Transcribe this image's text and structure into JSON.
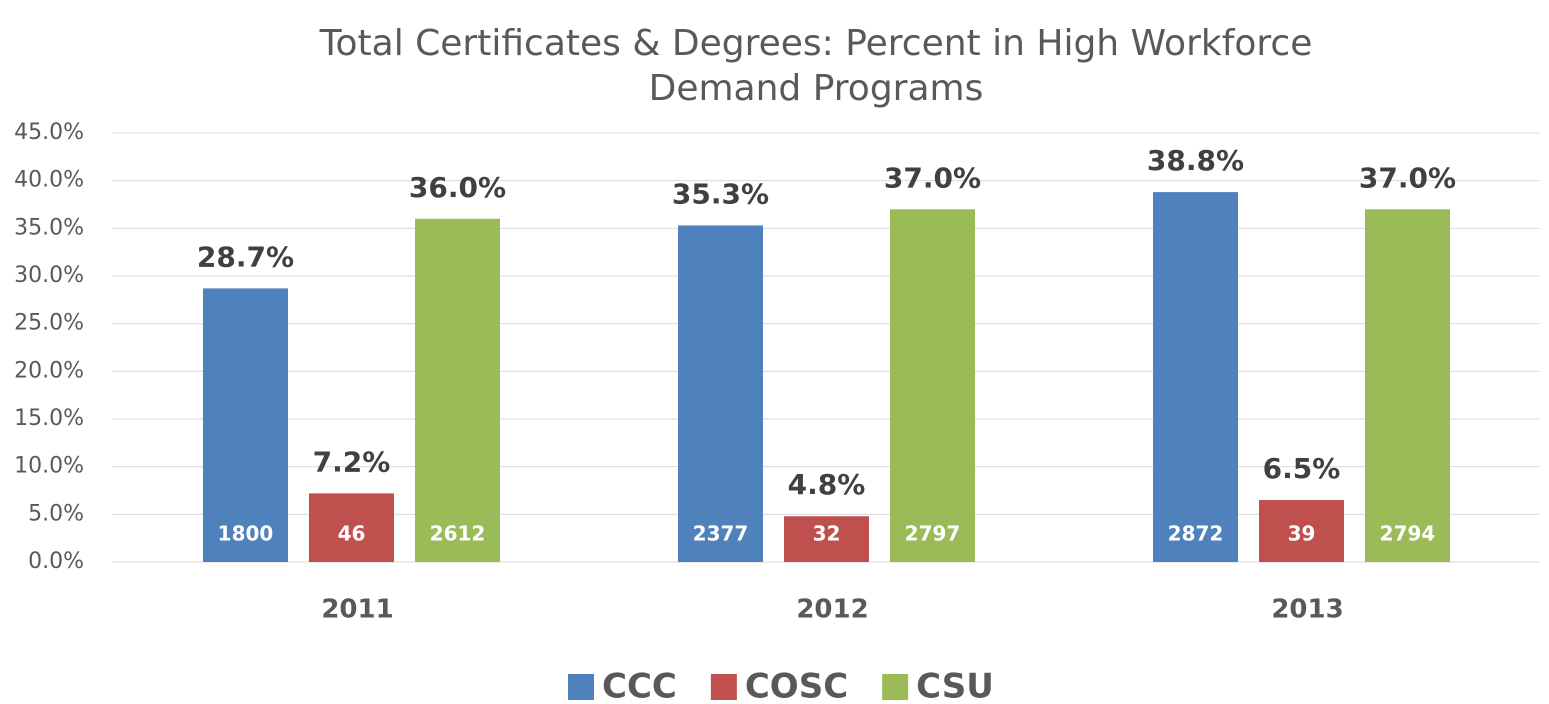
{
  "chart_data": {
    "type": "bar",
    "title": [
      "Total Certificates & Degrees: Percent in High Workforce",
      "Demand Programs"
    ],
    "categories": [
      "2011",
      "2012",
      "2013"
    ],
    "series": [
      {
        "name": "CCC",
        "color": "#4f81bd",
        "values": [
          28.7,
          35.3,
          38.8
        ],
        "value_labels": [
          "28.7%",
          "35.3%",
          "38.8%"
        ],
        "counts": [
          1800,
          2377,
          2872
        ]
      },
      {
        "name": "COSC",
        "color": "#c0504d",
        "values": [
          7.2,
          4.8,
          6.5
        ],
        "value_labels": [
          "7.2%",
          "4.8%",
          "6.5%"
        ],
        "counts": [
          46,
          32,
          39
        ]
      },
      {
        "name": "CSU",
        "color": "#9bbb59",
        "values": [
          36.0,
          37.0,
          37.0
        ],
        "value_labels": [
          "36.0%",
          "37.0%",
          "37.0%"
        ],
        "counts": [
          2612,
          2797,
          2794
        ]
      }
    ],
    "ylim": [
      0,
      45
    ],
    "yticks": [
      {
        "value": 0,
        "label": "0.0%"
      },
      {
        "value": 5,
        "label": "5.0%"
      },
      {
        "value": 10,
        "label": "10.0%"
      },
      {
        "value": 15,
        "label": "15.0%"
      },
      {
        "value": 20,
        "label": "20.0%"
      },
      {
        "value": 25,
        "label": "25.0%"
      },
      {
        "value": 30,
        "label": "30.0%"
      },
      {
        "value": 35,
        "label": "35.0%"
      },
      {
        "value": 40,
        "label": "40.0%"
      },
      {
        "value": 45,
        "label": "45.0%"
      }
    ],
    "grid": true,
    "legend": "bottom"
  }
}
